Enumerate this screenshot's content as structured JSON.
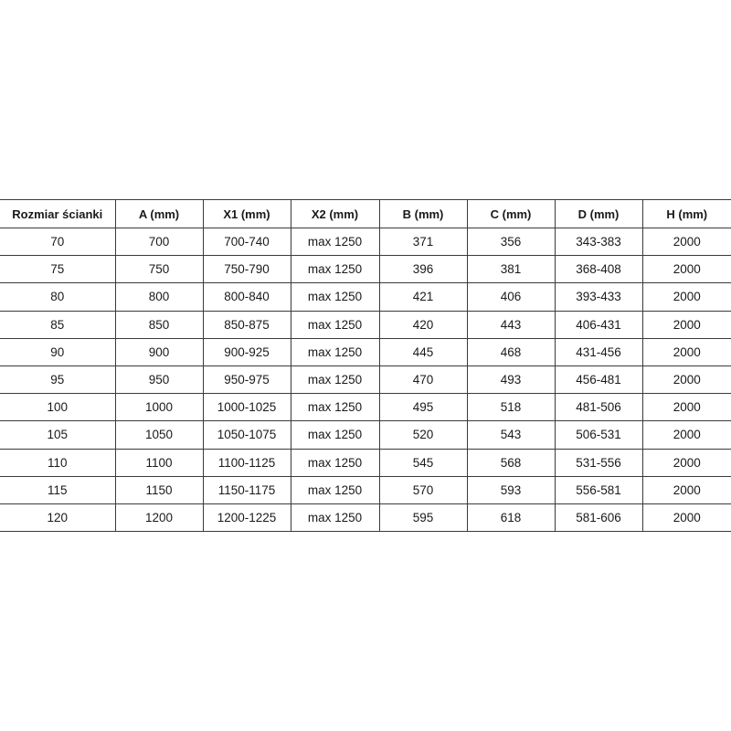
{
  "table": {
    "headers": [
      "Rozmiar ścianki",
      "A (mm)",
      "X1 (mm)",
      "X2 (mm)",
      "B (mm)",
      "C (mm)",
      "D (mm)",
      "H (mm)"
    ],
    "rows": [
      [
        "70",
        "700",
        "700-740",
        "max 1250",
        "371",
        "356",
        "343-383",
        "2000"
      ],
      [
        "75",
        "750",
        "750-790",
        "max 1250",
        "396",
        "381",
        "368-408",
        "2000"
      ],
      [
        "80",
        "800",
        "800-840",
        "max 1250",
        "421",
        "406",
        "393-433",
        "2000"
      ],
      [
        "85",
        "850",
        "850-875",
        "max 1250",
        "420",
        "443",
        "406-431",
        "2000"
      ],
      [
        "90",
        "900",
        "900-925",
        "max 1250",
        "445",
        "468",
        "431-456",
        "2000"
      ],
      [
        "95",
        "950",
        "950-975",
        "max 1250",
        "470",
        "493",
        "456-481",
        "2000"
      ],
      [
        "100",
        "1000",
        "1000-1025",
        "max 1250",
        "495",
        "518",
        "481-506",
        "2000"
      ],
      [
        "105",
        "1050",
        "1050-1075",
        "max 1250",
        "520",
        "543",
        "506-531",
        "2000"
      ],
      [
        "110",
        "1100",
        "1100-1125",
        "max 1250",
        "545",
        "568",
        "531-556",
        "2000"
      ],
      [
        "115",
        "1150",
        "1150-1175",
        "max 1250",
        "570",
        "593",
        "556-581",
        "2000"
      ],
      [
        "120",
        "1200",
        "1200-1225",
        "max 1250",
        "595",
        "618",
        "581-606",
        "2000"
      ]
    ]
  }
}
